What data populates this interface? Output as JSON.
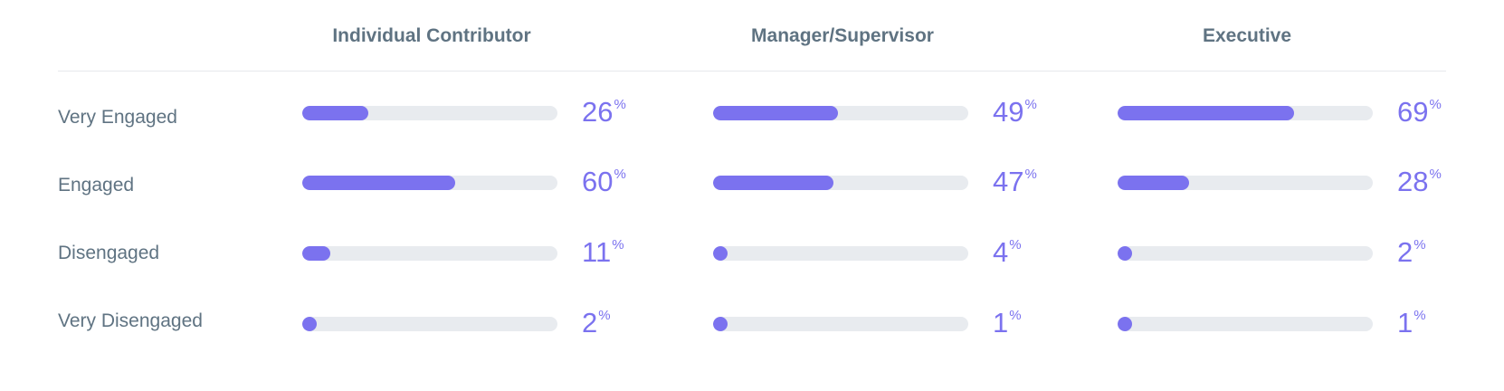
{
  "chart_data": {
    "type": "bar",
    "orientation": "horizontal",
    "categories": [
      "Very Engaged",
      "Engaged",
      "Disengaged",
      "Very Disengaged"
    ],
    "unit": "%",
    "xlim": [
      0,
      100
    ],
    "grid": false,
    "series": [
      {
        "name": "Individual Contributor",
        "values": [
          26,
          60,
          11,
          2
        ]
      },
      {
        "name": "Manager/Supervisor",
        "values": [
          49,
          47,
          4,
          1
        ]
      },
      {
        "name": "Executive",
        "values": [
          69,
          28,
          2,
          1
        ]
      }
    ]
  },
  "colors": {
    "bar_fill": "#7b72ef",
    "bar_track": "#e8ebef",
    "value_text": "#7b72ef",
    "label_text": "#5f7382"
  }
}
